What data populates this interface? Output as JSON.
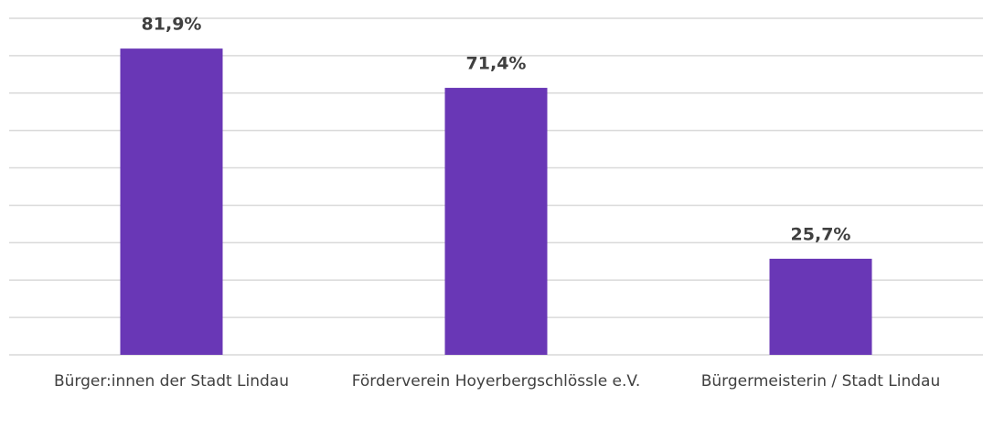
{
  "chart_data": {
    "type": "bar",
    "categories": [
      "Bürger:innen der Stadt Lindau",
      "Förderverein Hoyerbergschlössle e.V.",
      "Bürgermeisterin / Stadt Lindau"
    ],
    "values": [
      81.9,
      71.4,
      25.7
    ],
    "value_labels": [
      "81,9%",
      "71,4%",
      "25,7%"
    ],
    "color": "#6937b6",
    "ylim": [
      0,
      90
    ],
    "yticks": [
      0,
      10,
      20,
      30,
      40,
      50,
      60,
      70,
      80,
      90
    ],
    "grid": true
  }
}
